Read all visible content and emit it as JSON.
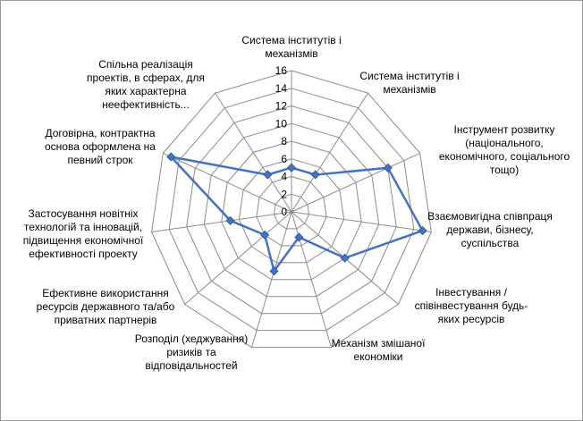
{
  "chart_data": {
    "type": "radar",
    "title": "",
    "rlim": [
      0,
      16
    ],
    "ticks": [
      0,
      2,
      4,
      6,
      8,
      10,
      12,
      14,
      16
    ],
    "grid": true,
    "legend": "none",
    "series_color": "#4472C4",
    "categories": [
      [
        "Система інститутів і",
        "механізмів"
      ],
      [
        "Система інститутів і",
        "механізмів"
      ],
      [
        "Інструмент розвитку",
        "(національного,",
        "економічного, соціального",
        "тощо)"
      ],
      [
        "Взаємовигідна співпраця",
        "держави, бізнесу,",
        "суспільства"
      ],
      [
        "Інвестування /",
        "співінвестування  будь-",
        "яких ресурсів"
      ],
      [
        "Механізм змішаної",
        "економіки"
      ],
      [
        "Розподіл (хеджування)",
        "ризиків та",
        "відповідальностей"
      ],
      [
        "Ефективне використання",
        "ресурсів державного та/або",
        "приватних партнерів"
      ],
      [
        "Застосування новітніх",
        "технологій та інновацій,",
        "підвищення економічної",
        "ефективності проекту"
      ],
      [
        "Договірна, контрактна",
        "основа оформлена на",
        "певний строк"
      ],
      [
        "Спільна реалізація",
        "проектів,  в сферах, для",
        "яких характерна",
        "неефективність..."
      ]
    ],
    "values": [
      5,
      5,
      12,
      15,
      8,
      3,
      7,
      4,
      7,
      15,
      5
    ]
  }
}
